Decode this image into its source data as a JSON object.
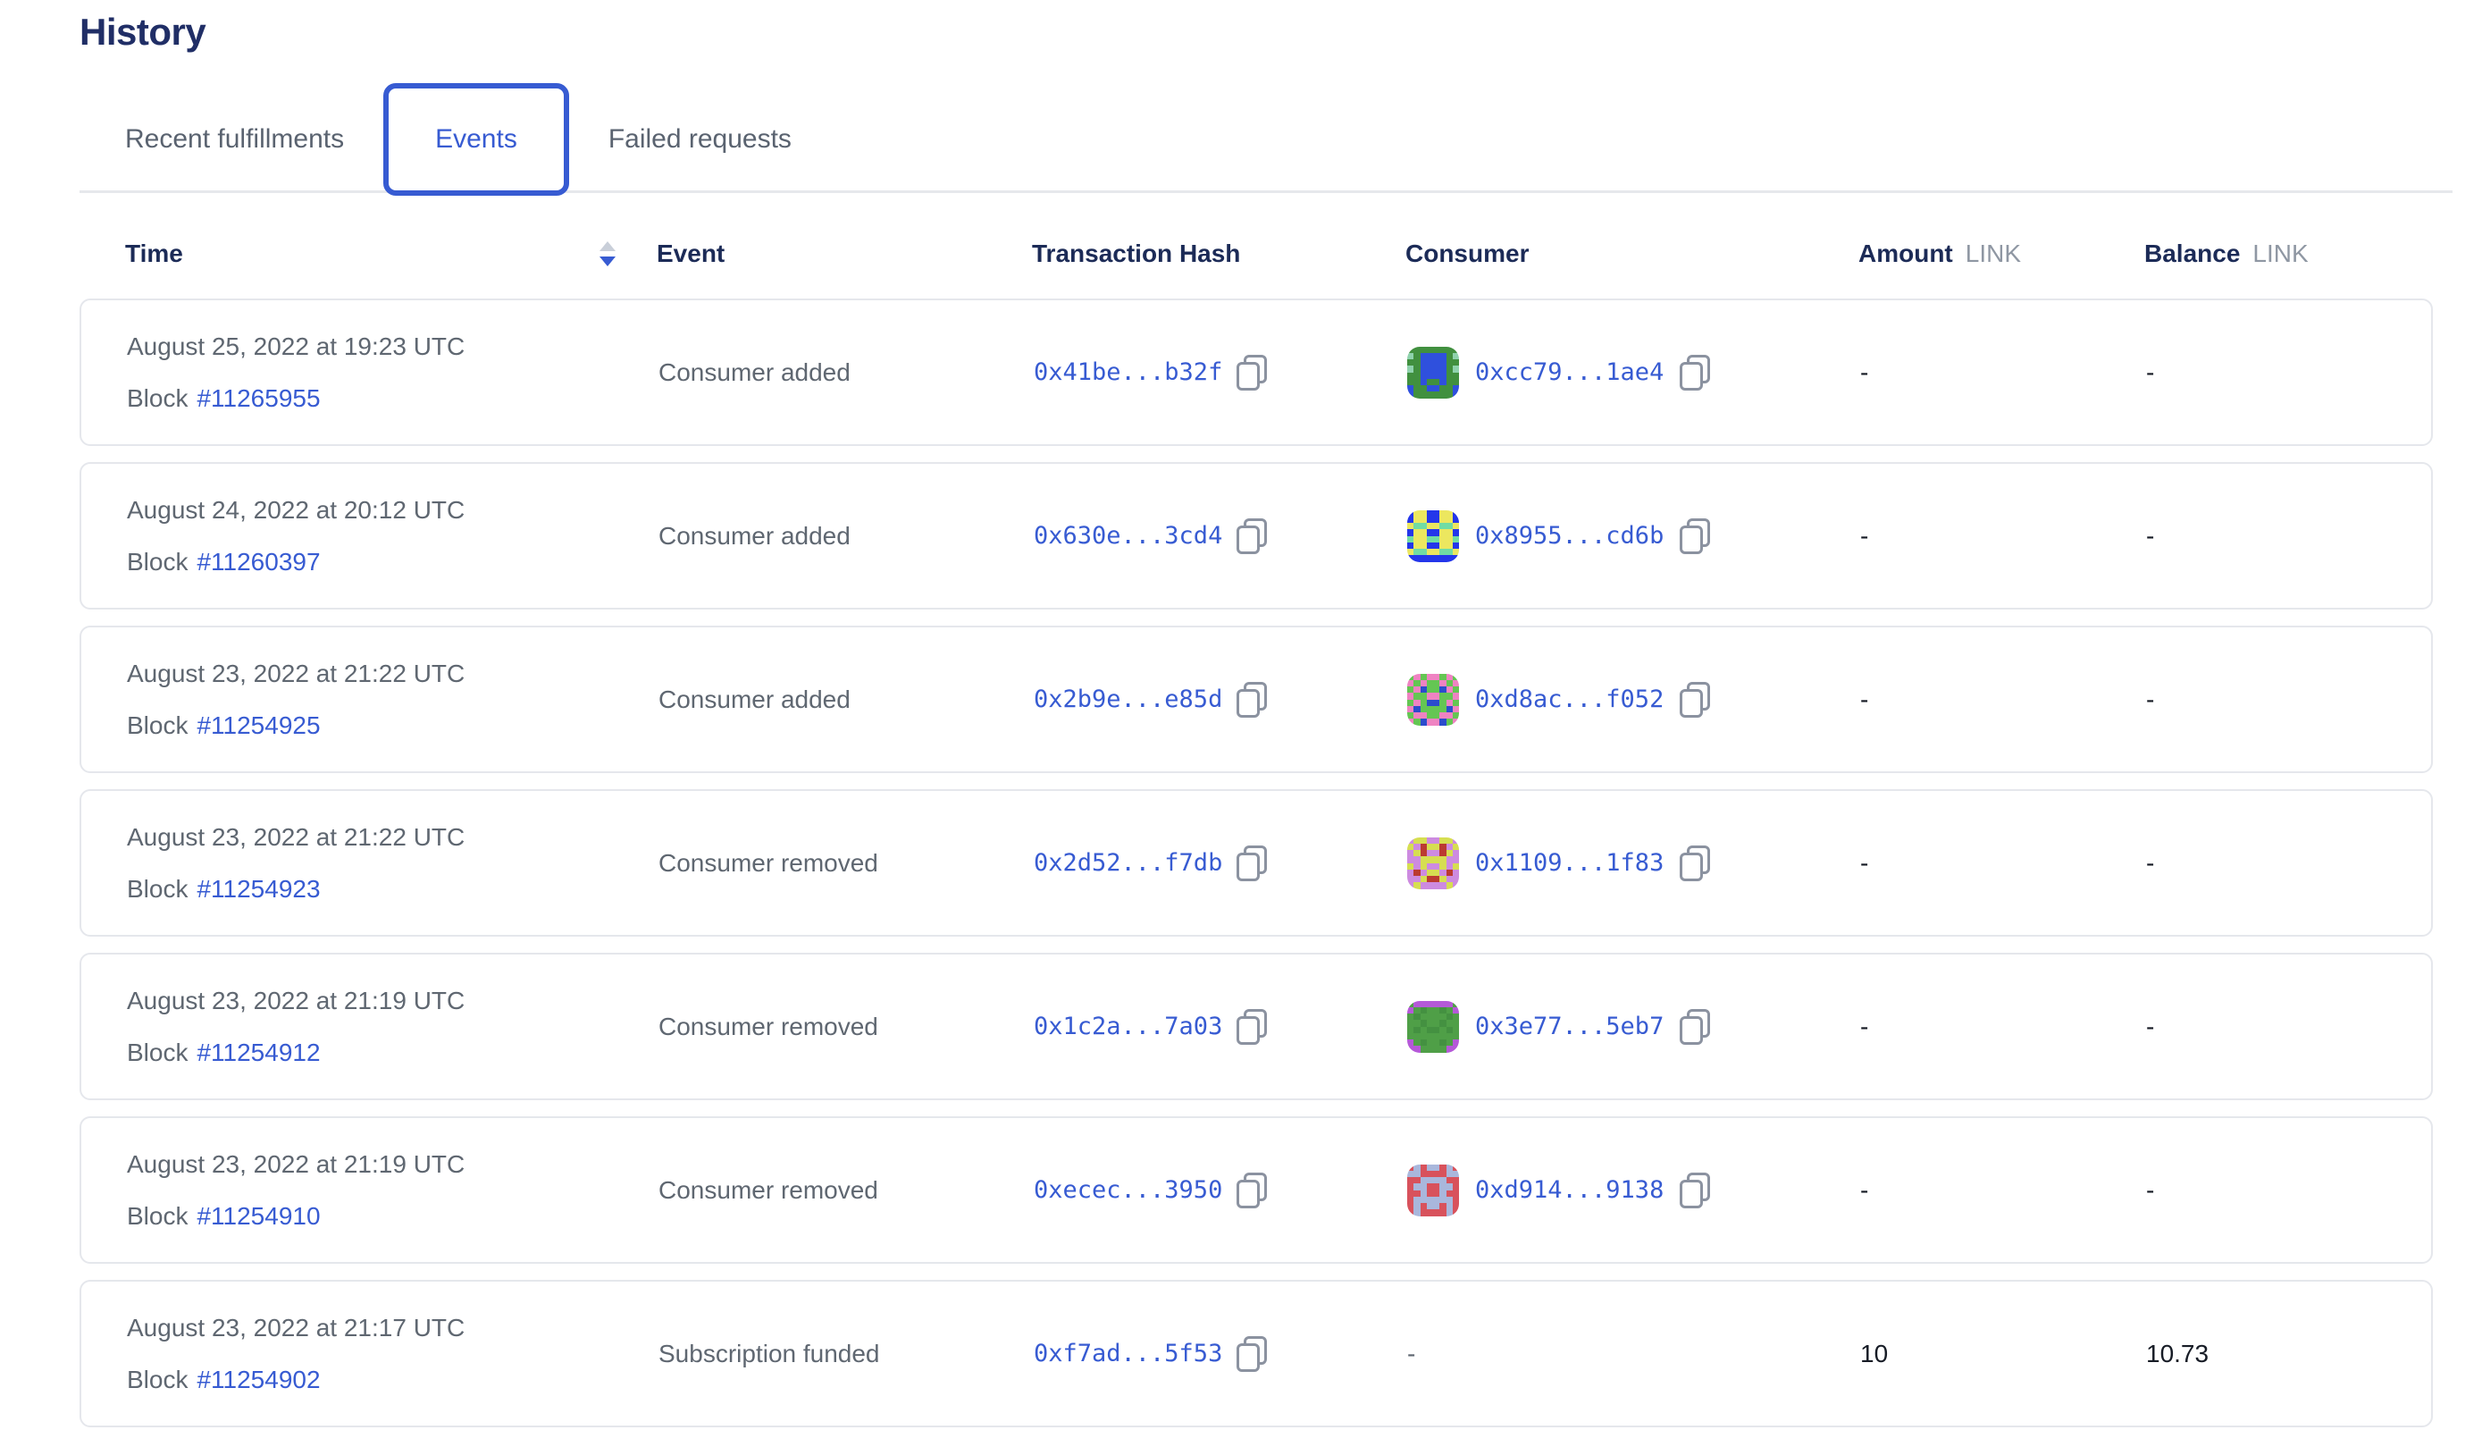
{
  "colors": {
    "accent": "#375bd2",
    "title_text": "#202e66",
    "header_text": "#1c2b57",
    "muted_text": "#5f6771",
    "unit_text": "#8f97a3",
    "value_text": "#171c26",
    "card_border": "#e5e7ec"
  },
  "page": {
    "title": "History"
  },
  "tabs": [
    {
      "label": "Recent fulfillments",
      "active": false
    },
    {
      "label": "Events",
      "active": true
    },
    {
      "label": "Failed requests",
      "active": false
    }
  ],
  "table": {
    "columns": {
      "time": "Time",
      "event": "Event",
      "transaction_hash": "Transaction Hash",
      "consumer": "Consumer",
      "amount": "Amount",
      "balance": "Balance",
      "unit": "LINK"
    },
    "sort": {
      "column": "Time",
      "direction": "desc"
    },
    "rows": [
      {
        "date": "August 25, 2022 at 19:23 UTC",
        "block_label": "Block",
        "block_number": "#11265955",
        "event": "Consumer added",
        "tx_hash": "0x41be...b32f",
        "consumer": "0xcc79...1ae4",
        "amount": "-",
        "balance": "-",
        "avatar": {
          "palette": [
            "#41903f",
            "#2f50dd",
            "#8fd2ad"
          ],
          "pattern": [
            "00000000",
            "20111102",
            "00111100",
            "20111102",
            "00111100",
            "00100100",
            "10011001",
            "10000001"
          ]
        }
      },
      {
        "date": "August 24, 2022 at 20:12 UTC",
        "block_label": "Block",
        "block_number": "#11260397",
        "event": "Consumer added",
        "tx_hash": "0x630e...3cd4",
        "consumer": "0x8955...cd6b",
        "amount": "-",
        "balance": "-",
        "avatar": {
          "palette": [
            "#2436ea",
            "#ece75f",
            "#71dca4"
          ],
          "pattern": [
            "01100110",
            "01100110",
            "12211221",
            "01100110",
            "21122112",
            "01100110",
            "12211221",
            "00000000"
          ]
        }
      },
      {
        "date": "August 23, 2022 at 21:22 UTC",
        "block_label": "Block",
        "block_number": "#11254925",
        "event": "Consumer added",
        "tx_hash": "0x2b9e...e85d",
        "consumer": "0xd8ac...f052",
        "amount": "-",
        "balance": "-",
        "avatar": {
          "palette": [
            "#64c653",
            "#ef83c2",
            "#2b4ccc"
          ],
          "pattern": [
            "01011010",
            "10100101",
            "01200210",
            "10011001",
            "01022010",
            "12000021",
            "01100110",
            "10211201"
          ]
        }
      },
      {
        "date": "August 23, 2022 at 21:22 UTC",
        "block_label": "Block",
        "block_number": "#11254923",
        "event": "Consumer removed",
        "tx_hash": "0x2d52...f7db",
        "consumer": "0x1109...1f83",
        "amount": "-",
        "balance": "-",
        "avatar": {
          "palette": [
            "#cd8be0",
            "#d6de51",
            "#bb3a31"
          ],
          "pattern": [
            "01100110",
            "10211201",
            "01200210",
            "00111100",
            "10100101",
            "02011020",
            "00122100",
            "01000010"
          ]
        }
      },
      {
        "date": "August 23, 2022 at 21:19 UTC",
        "block_label": "Block",
        "block_number": "#11254912",
        "event": "Consumer removed",
        "tx_hash": "0x1c2a...7a03",
        "consumer": "0x3e77...5eb7",
        "amount": "-",
        "balance": "-",
        "avatar": {
          "palette": [
            "#4f9f47",
            "#b559d8",
            "#449141"
          ],
          "pattern": [
            "01111110",
            "10200201",
            "02000020",
            "00200200",
            "02022020",
            "00000000",
            "10200201",
            "11000011"
          ]
        }
      },
      {
        "date": "August 23, 2022 at 21:19 UTC",
        "block_label": "Block",
        "block_number": "#11254910",
        "event": "Consumer removed",
        "tx_hash": "0xecec...3950",
        "consumer": "0xd914...9138",
        "amount": "-",
        "balance": "-",
        "avatar": {
          "palette": [
            "#d8525c",
            "#a9b7dc",
            "#c24248"
          ],
          "pattern": [
            "01011010",
            "11000011",
            "00111100",
            "01100110",
            "00100100",
            "01111110",
            "01011010",
            "01000010"
          ]
        }
      },
      {
        "date": "August 23, 2022 at 21:17 UTC",
        "block_label": "Block",
        "block_number": "#11254902",
        "event": "Subscription funded",
        "tx_hash": "0xf7ad...5f53",
        "consumer": "-",
        "amount": "10",
        "balance": "10.73",
        "avatar": null
      }
    ]
  }
}
